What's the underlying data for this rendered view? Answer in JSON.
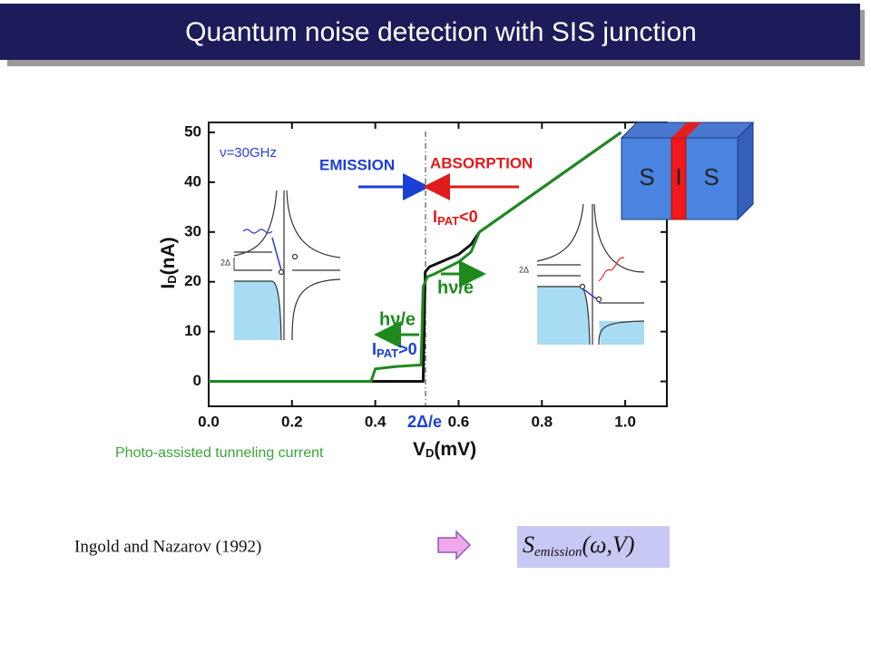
{
  "slide_title": "Quantum noise detection with SIS junction",
  "chart_data": {
    "type": "line",
    "x_label": {
      "main": "V",
      "sub": "D",
      "unit": "(mV)"
    },
    "y_label": {
      "main": "I",
      "sub": "D",
      "unit": "(nA)"
    },
    "caption": "Photo-assisted tunneling current",
    "xlim": [
      0,
      1.1
    ],
    "ylim": [
      -5,
      52
    ],
    "xticks": [
      {
        "value": 0,
        "label": "0.0"
      },
      0.2,
      0.4,
      0.6,
      0.8,
      {
        "value": 1,
        "label": "1.0"
      }
    ],
    "yticks": [
      0,
      10,
      20,
      30,
      40,
      50
    ],
    "series": [
      {
        "color": "#111111",
        "x": [
          0,
          0.515,
          0.52,
          0.53,
          0.6,
          0.63,
          0.65,
          0.99
        ],
        "values": [
          0,
          0,
          22,
          23,
          25.5,
          27.5,
          30,
          50
        ]
      },
      {
        "color": "#1e8a1e",
        "x": [
          0,
          0.39,
          0.4,
          0.45,
          0.51,
          0.515,
          0.525,
          0.54,
          0.6,
          0.63,
          0.65,
          0.99
        ],
        "values": [
          0,
          0,
          2.5,
          3,
          3.3,
          19,
          21,
          21.5,
          24,
          26,
          30,
          50
        ]
      }
    ],
    "annotations": {
      "frequency": "ν=30GHz",
      "emission": "EMISSION",
      "absorption": "ABSORPTION",
      "ipat_negative": {
        "main": "I",
        "sub": "PAT",
        "rest": "<0"
      },
      "ipat_positive": {
        "main": "I",
        "sub": "PAT",
        "rest": ">0"
      },
      "photon_right": "hν/e",
      "photon_left": "hν/e",
      "gap_voltage": "2Δ/e",
      "gap_left": "2Δ",
      "gap_right": "2Δ"
    }
  },
  "junction": {
    "left": "S",
    "middle": "I",
    "right": "S"
  },
  "reference": "Ingold and Nazarov (1992)",
  "formula": {
    "main": "S",
    "sub": "emission",
    "args": "(ω,V)"
  }
}
